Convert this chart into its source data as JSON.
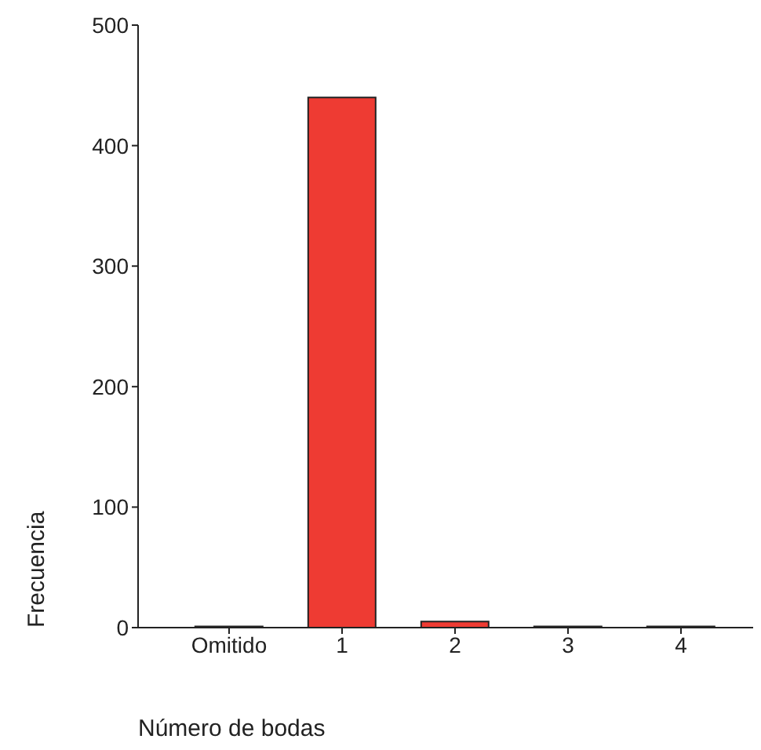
{
  "chart_data": {
    "type": "bar",
    "xlabel": "Número de bodas",
    "ylabel": "Frecuencia",
    "categories": [
      "Omitido",
      "1",
      "2",
      "3",
      "4"
    ],
    "values": [
      1,
      440,
      5,
      1,
      1
    ],
    "color": "#ee3b33",
    "ylim": [
      0,
      500
    ],
    "yticks": [
      0,
      100,
      200,
      300,
      400,
      500
    ],
    "grid": false,
    "legend": false
  }
}
